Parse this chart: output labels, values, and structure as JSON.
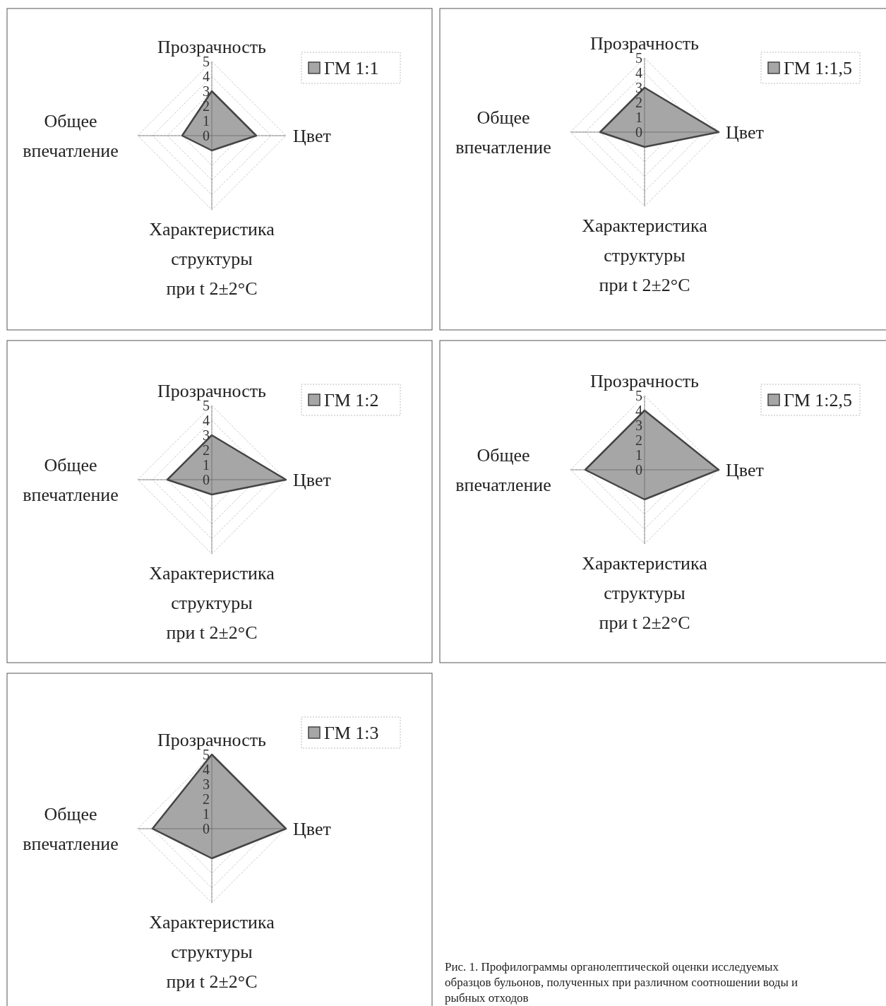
{
  "chart_data": [
    {
      "type": "radar",
      "categories": [
        "Прозрачность",
        "Цвет",
        "Характеристика\nструктуры\nпри t 2±2°C",
        "Общее\nвпечатление"
      ],
      "series": [
        {
          "name": "ГМ 1:1",
          "color": "#a6a6a6",
          "values": [
            3,
            3,
            1,
            2
          ]
        }
      ],
      "ylim": [
        0,
        5
      ],
      "yticks": [
        0,
        1,
        2,
        3,
        4,
        5
      ],
      "grid": true,
      "legend": "top right"
    },
    {
      "type": "radar",
      "categories": [
        "Прозрачность",
        "Цвет",
        "Характеристика\nструктуры\nпри t 2±2°C",
        "Общее\nвпечатление"
      ],
      "series": [
        {
          "name": "ГМ 1:1,5",
          "color": "#a6a6a6",
          "values": [
            3,
            5,
            1,
            3
          ]
        }
      ],
      "ylim": [
        0,
        5
      ],
      "yticks": [
        0,
        1,
        2,
        3,
        4,
        5
      ],
      "grid": true,
      "legend": "top right"
    },
    {
      "type": "radar",
      "categories": [
        "Прозрачность",
        "Цвет",
        "Характеристика\nструктуры\nпри t 2±2°C",
        "Общее\nвпечатление"
      ],
      "series": [
        {
          "name": "ГМ 1:2",
          "color": "#a6a6a6",
          "values": [
            3,
            5,
            1,
            3
          ]
        }
      ],
      "ylim": [
        0,
        5
      ],
      "yticks": [
        0,
        1,
        2,
        3,
        4,
        5
      ],
      "grid": true,
      "legend": "top right"
    },
    {
      "type": "radar",
      "categories": [
        "Прозрачность",
        "Цвет",
        "Характеристика\nструктуры\nпри t 2±2°C",
        "Общее\nвпечатление"
      ],
      "series": [
        {
          "name": "ГМ 1:2,5",
          "color": "#a6a6a6",
          "values": [
            4,
            5,
            2,
            4
          ]
        }
      ],
      "ylim": [
        0,
        5
      ],
      "yticks": [
        0,
        1,
        2,
        3,
        4,
        5
      ],
      "grid": true,
      "legend": "top right"
    },
    {
      "type": "radar",
      "categories": [
        "Прозрачность",
        "Цвет",
        "Характеристика\nструктуры\nпри t 2±2°C",
        "Общее\nвпечатление"
      ],
      "series": [
        {
          "name": "ГМ 1:3",
          "color": "#a6a6a6",
          "values": [
            5,
            5,
            2,
            4
          ]
        }
      ],
      "ylim": [
        0,
        5
      ],
      "yticks": [
        0,
        1,
        2,
        3,
        4,
        5
      ],
      "grid": true,
      "legend": "top right"
    },
    {
      "type": "other",
      "annotations": [
        "Рис. 1. Профилограммы органолептической оценки исследуемых образцов бульонов, полученных при различном соотношении воды и рыбных отходов"
      ]
    }
  ]
}
